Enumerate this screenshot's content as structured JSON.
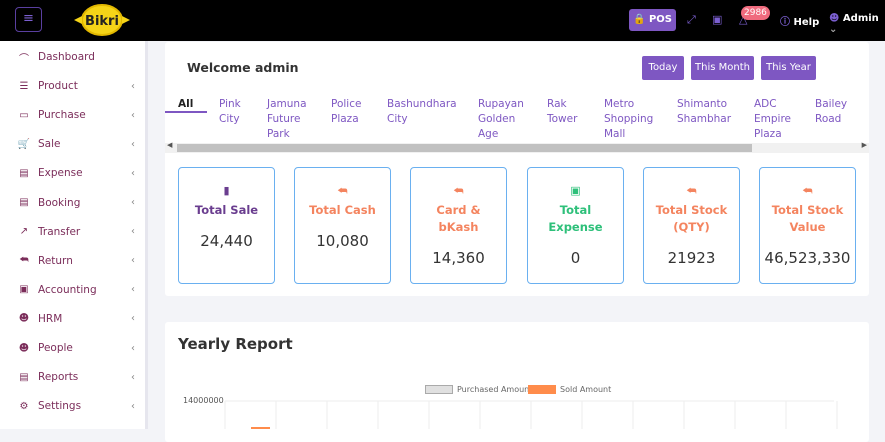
{
  "header": {
    "brand": "Bikri",
    "pos_label": "POS",
    "notification_count": "2986",
    "help_label": "Help",
    "user_label": "Admin"
  },
  "sidebar": {
    "items": [
      {
        "label": "Dashboard",
        "icon": "gauge-icon",
        "chevron": false
      },
      {
        "label": "Product",
        "icon": "list-icon",
        "chevron": true
      },
      {
        "label": "Purchase",
        "icon": "card-icon",
        "chevron": true
      },
      {
        "label": "Sale",
        "icon": "cart-icon",
        "chevron": true
      },
      {
        "label": "Expense",
        "icon": "wallet-icon",
        "chevron": true
      },
      {
        "label": "Booking",
        "icon": "document-icon",
        "chevron": true
      },
      {
        "label": "Transfer",
        "icon": "share-icon",
        "chevron": true
      },
      {
        "label": "Return",
        "icon": "return-icon",
        "chevron": true
      },
      {
        "label": "Accounting",
        "icon": "briefcase-icon",
        "chevron": true
      },
      {
        "label": "HRM",
        "icon": "users-icon",
        "chevron": true
      },
      {
        "label": "People",
        "icon": "user-icon",
        "chevron": true
      },
      {
        "label": "Reports",
        "icon": "report-icon",
        "chevron": true
      },
      {
        "label": "Settings",
        "icon": "gear-icon",
        "chevron": true
      }
    ]
  },
  "main": {
    "welcome": "Welcome admin",
    "filters": [
      "Today",
      "This Month",
      "This Year"
    ],
    "tabs": [
      "All",
      "Pink\nCity",
      "Jamuna\nFuture\nPark",
      "Police\nPlaza",
      "Bashundhara\nCity",
      "Rupayan\nGolden\nAge",
      "Rak\nTower",
      "Metro\nShopping\nMall",
      "Shimanto\nShambhar",
      "ADC\nEmpire\nPlaza",
      "Bailey\nRoad"
    ],
    "active_tab": "All",
    "stats": [
      {
        "label": "Total Sale",
        "value": "24,440",
        "color": "#6a3d8f",
        "icon": "bar-chart-icon"
      },
      {
        "label": "Total Cash",
        "value": "10,080",
        "color": "#f4845f",
        "icon": "return-icon"
      },
      {
        "label": "Card & bKash",
        "value": "14,360",
        "color": "#f4845f",
        "icon": "return-icon"
      },
      {
        "label": "Total Expense",
        "value": "0",
        "color": "#2ec07a",
        "icon": "expense-icon"
      },
      {
        "label": "Total Stock (QTY)",
        "value": "21923",
        "color": "#f4845f",
        "icon": "return-icon"
      },
      {
        "label": "Total Stock Value",
        "value": "46,523,330",
        "color": "#f4845f",
        "icon": "return-icon"
      }
    ]
  },
  "report": {
    "title": "Yearly Report"
  },
  "chart_data": {
    "type": "bar",
    "series": [
      {
        "name": "Purchased Amount",
        "color": "#e0e0e0"
      },
      {
        "name": "Sold Amount",
        "color": "#ff8c4b"
      }
    ],
    "y_ticks": [
      "14000000"
    ],
    "grid": true,
    "legend": "top"
  }
}
